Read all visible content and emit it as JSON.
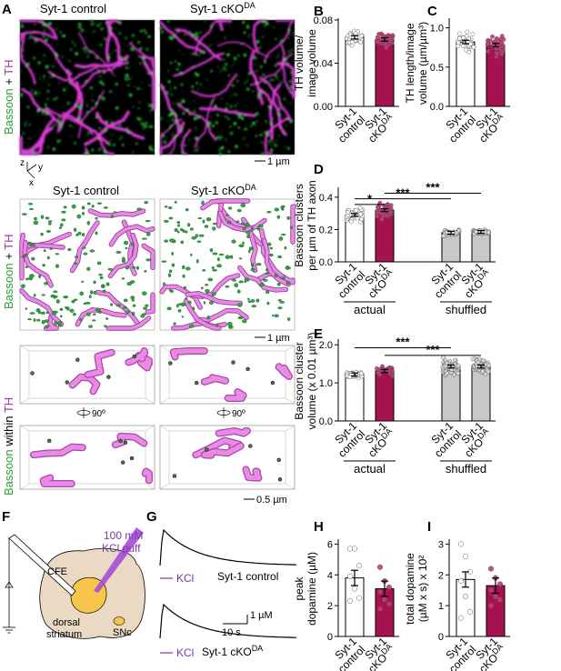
{
  "panels": {
    "A": {
      "letter": "A",
      "top_labels": [
        "Syt-1 control",
        "Syt-1 cKO",
        "DA"
      ],
      "mid_labels": [
        "Syt-1 control",
        "Syt-1 cKO",
        "DA"
      ],
      "side_label_1": {
        "a": "Bassoon",
        "b": " + ",
        "c": "TH"
      },
      "side_label_2": {
        "a": "Bassoon",
        "b": " + ",
        "c": "TH"
      },
      "side_label_3": {
        "a": "Bassoon",
        "b": " within ",
        "c": "TH"
      },
      "axes": {
        "z": "z",
        "y": "y",
        "x": "x"
      },
      "scale_1": "1 µm",
      "scale_2": "1 µm",
      "scale_3": "0.5 µm",
      "rotate_label": "90º"
    },
    "F": {
      "letter": "F",
      "puff": "100 mM",
      "puff2": "KCl puff",
      "cfe": "CFE",
      "region1": "dorsal",
      "region2": "striatum",
      "snc": "SNc"
    },
    "G": {
      "letter": "G",
      "trace1": "Syt-1 control",
      "trace2a": "Syt-1 cKO",
      "trace2b": "DA",
      "stim": "KCl",
      "scale_y": "1 µM",
      "scale_x": "10 s"
    }
  },
  "chart_data": [
    {
      "id": "B",
      "letter": "B",
      "type": "bar",
      "categories": [
        {
          "a": "Syt-1",
          "b": "control",
          "sup": ""
        },
        {
          "a": "Syt-1",
          "b": "cKO",
          "sup": "DA"
        }
      ],
      "values": [
        0.064,
        0.062
      ],
      "ylim": [
        0,
        0.08
      ],
      "ticks": [
        "0.00",
        "0.04",
        "0.08"
      ],
      "tick_values": [
        0,
        0.04,
        0.08
      ],
      "ylabel": [
        "TH volume/",
        "image volume"
      ],
      "colors": [
        "#ffffff",
        "#a5124f"
      ],
      "n": [
        40,
        40
      ],
      "spread": 0.006
    },
    {
      "id": "C",
      "letter": "C",
      "type": "bar",
      "categories": [
        {
          "a": "Syt-1",
          "b": "control",
          "sup": ""
        },
        {
          "a": "Syt-1",
          "b": "cKO",
          "sup": "DA"
        }
      ],
      "values": [
        0.82,
        0.78
      ],
      "ylim": [
        0,
        1.1
      ],
      "ticks": [
        "0.0",
        "0.5",
        "1.0"
      ],
      "tick_values": [
        0,
        0.5,
        1.0
      ],
      "ylabel": [
        "TH length/image",
        "volume (µm/µm³)"
      ],
      "colors": [
        "#ffffff",
        "#a5124f"
      ],
      "n": [
        40,
        40
      ],
      "spread": 0.13
    },
    {
      "id": "D",
      "letter": "D",
      "type": "bar",
      "categories": [
        {
          "a": "Syt-1",
          "b": "control",
          "sup": ""
        },
        {
          "a": "Syt-1",
          "b": "cKO",
          "sup": "DA"
        },
        {
          "a": "Syt-1",
          "b": "control",
          "sup": ""
        },
        {
          "a": "Syt-1",
          "b": "cKO",
          "sup": "DA"
        }
      ],
      "values": [
        0.29,
        0.32,
        0.18,
        0.185
      ],
      "ylim": [
        0,
        0.45
      ],
      "ticks": [
        "0.0",
        "0.2",
        "0.4"
      ],
      "tick_values": [
        0,
        0.2,
        0.4
      ],
      "ylabel": [
        "Bassoon clusters",
        "per µm of TH axon"
      ],
      "colors": [
        "#ffffff",
        "#a5124f",
        "#c8c8c8",
        "#c8c8c8"
      ],
      "n": [
        40,
        40,
        40,
        40
      ],
      "spread": 0.05,
      "spread_per": [
        0.05,
        0.05,
        0.015,
        0.012
      ],
      "groups": [
        "actual",
        "shuffled"
      ],
      "sig": [
        {
          "from": 0,
          "to": 1,
          "label": "*",
          "y": 0.355
        },
        {
          "from": 0,
          "to": 2,
          "label": "***",
          "y": 0.39
        },
        {
          "from": 1,
          "to": 3,
          "label": "***",
          "y": 0.425
        }
      ]
    },
    {
      "id": "E",
      "letter": "E",
      "type": "bar",
      "categories": [
        {
          "a": "Syt-1",
          "b": "control",
          "sup": ""
        },
        {
          "a": "Syt-1",
          "b": "cKO",
          "sup": "DA"
        },
        {
          "a": "Syt-1",
          "b": "control",
          "sup": ""
        },
        {
          "a": "Syt-1",
          "b": "cKO",
          "sup": "DA"
        }
      ],
      "values": [
        1.22,
        1.31,
        1.43,
        1.43
      ],
      "ylim": [
        0,
        2.1
      ],
      "ticks": [
        "0.0",
        "1.0",
        "2.0"
      ],
      "tick_values": [
        0,
        1.0,
        2.0
      ],
      "ylabel": [
        "Bassoon cluster",
        "volume (x 0.01 µm³)"
      ],
      "colors": [
        "#ffffff",
        "#a5124f",
        "#c8c8c8",
        "#c8c8c8"
      ],
      "n": [
        40,
        40,
        60,
        60
      ],
      "spread": 0.12,
      "spread_per": [
        0.08,
        0.12,
        0.2,
        0.18
      ],
      "groups": [
        "actual",
        "shuffled"
      ],
      "sig": [
        {
          "from": 0,
          "to": 2,
          "label": "***",
          "y": 1.92
        },
        {
          "from": 1,
          "to": 3,
          "label": "***",
          "y": 1.72
        }
      ]
    },
    {
      "id": "H",
      "letter": "H",
      "type": "bar",
      "categories": [
        {
          "a": "Syt-1",
          "b": "control",
          "sup": ""
        },
        {
          "a": "Syt-1",
          "b": "cKO",
          "sup": "DA"
        }
      ],
      "values": [
        3.8,
        3.1
      ],
      "ylim": [
        0,
        6.2
      ],
      "ticks": [
        "0",
        "2",
        "4",
        "6"
      ],
      "tick_values": [
        0,
        2,
        4,
        6
      ],
      "ylabel": [
        "peak",
        "dopamine (µM)"
      ],
      "colors": [
        "#ffffff",
        "#a5124f"
      ],
      "points": [
        [
          5.7,
          5.7,
          4.6,
          3.9,
          3.1,
          2.5,
          2.3
        ],
        [
          4.5,
          3.6,
          3.2,
          2.9,
          2.4,
          2.1,
          1.8
        ]
      ]
    },
    {
      "id": "I",
      "letter": "I",
      "type": "bar",
      "categories": [
        {
          "a": "Syt-1",
          "b": "control",
          "sup": ""
        },
        {
          "a": "Syt-1",
          "b": "cKO",
          "sup": "DA"
        }
      ],
      "values": [
        1.85,
        1.65
      ],
      "ylim": [
        0,
        3.1
      ],
      "ticks": [
        "0",
        "1",
        "2",
        "3"
      ],
      "tick_values": [
        0,
        1,
        2,
        3
      ],
      "ylabel": [
        "total dopamine",
        "(µM x s) x 10²"
      ],
      "colors": [
        "#ffffff",
        "#a5124f"
      ],
      "points": [
        [
          3.0,
          2.6,
          2.1,
          1.8,
          1.3,
          0.8,
          0.6
        ],
        [
          2.2,
          1.9,
          1.7,
          1.5,
          1.3,
          1.2,
          1.0
        ]
      ]
    }
  ]
}
